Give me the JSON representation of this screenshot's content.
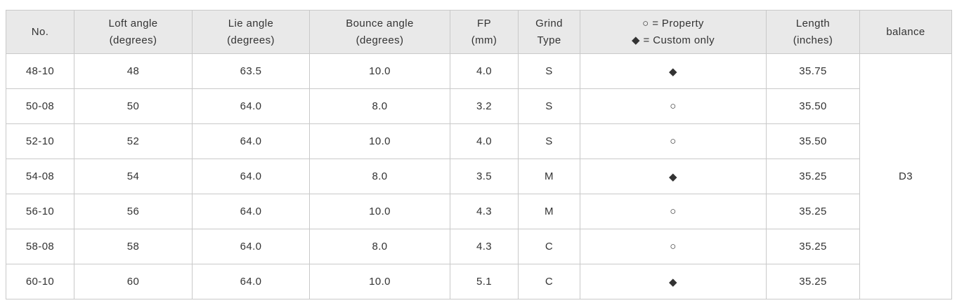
{
  "colors": {
    "header_bg": "#e9e9e9",
    "border": "#c9c9c9",
    "text": "#333333"
  },
  "table": {
    "headers": [
      {
        "line1": "No.",
        "line2": ""
      },
      {
        "line1": "Loft angle",
        "line2": "(degrees)"
      },
      {
        "line1": "Lie angle",
        "line2": "(degrees)"
      },
      {
        "line1": "Bounce angle",
        "line2": "(degrees)"
      },
      {
        "line1": "FP",
        "line2": "(mm)"
      },
      {
        "line1": "Grind",
        "line2": "Type"
      },
      {
        "line1": "○ = Property",
        "line2": "◆ = Custom only"
      },
      {
        "line1": "Length",
        "line2": "(inches)"
      },
      {
        "line1": "balance",
        "line2": ""
      }
    ],
    "legend": {
      "property_symbol": "○",
      "custom_only_symbol": "◆"
    },
    "rows": [
      {
        "no": "48-10",
        "loft": "48",
        "lie": "63.5",
        "bounce": "10.0",
        "fp": "4.0",
        "grind": "S",
        "mark": "◆",
        "length": "35.75"
      },
      {
        "no": "50-08",
        "loft": "50",
        "lie": "64.0",
        "bounce": "8.0",
        "fp": "3.2",
        "grind": "S",
        "mark": "○",
        "length": "35.50"
      },
      {
        "no": "52-10",
        "loft": "52",
        "lie": "64.0",
        "bounce": "10.0",
        "fp": "4.0",
        "grind": "S",
        "mark": "○",
        "length": "35.50"
      },
      {
        "no": "54-08",
        "loft": "54",
        "lie": "64.0",
        "bounce": "8.0",
        "fp": "3.5",
        "grind": "M",
        "mark": "◆",
        "length": "35.25"
      },
      {
        "no": "56-10",
        "loft": "56",
        "lie": "64.0",
        "bounce": "10.0",
        "fp": "4.3",
        "grind": "M",
        "mark": "○",
        "length": "35.25"
      },
      {
        "no": "58-08",
        "loft": "58",
        "lie": "64.0",
        "bounce": "8.0",
        "fp": "4.3",
        "grind": "C",
        "mark": "○",
        "length": "35.25"
      },
      {
        "no": "60-10",
        "loft": "60",
        "lie": "64.0",
        "bounce": "10.0",
        "fp": "5.1",
        "grind": "C",
        "mark": "◆",
        "length": "35.25"
      }
    ],
    "balance": "D3"
  }
}
